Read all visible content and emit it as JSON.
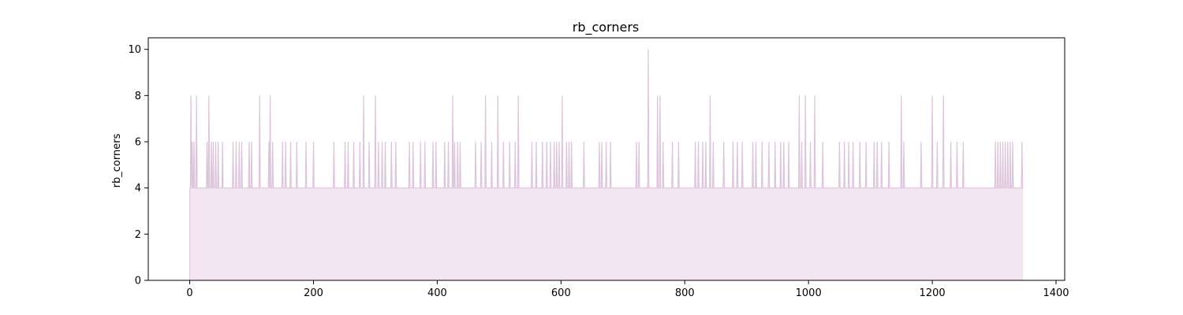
{
  "chart_data": {
    "type": "area",
    "title": "rb_corners",
    "xlabel": "",
    "ylabel": "rb_corners",
    "xlim": [
      -67,
      1414
    ],
    "ylim": [
      0,
      10.5
    ],
    "xticks": [
      0,
      200,
      400,
      600,
      800,
      1000,
      1200,
      1400
    ],
    "yticks": [
      0,
      2,
      4,
      6,
      8,
      10
    ],
    "grid": false,
    "fill_color": "#f3e6f0",
    "line_color": "#dcc4db",
    "x_start": 0,
    "x_end": 1347,
    "baseline_value": 4,
    "spikes": [
      {
        "x": 2,
        "y": 8
      },
      {
        "x": 4,
        "y": 6
      },
      {
        "x": 7,
        "y": 6
      },
      {
        "x": 11,
        "y": 8
      },
      {
        "x": 28,
        "y": 6
      },
      {
        "x": 31,
        "y": 8
      },
      {
        "x": 35,
        "y": 6
      },
      {
        "x": 38,
        "y": 6
      },
      {
        "x": 42,
        "y": 6
      },
      {
        "x": 46,
        "y": 6
      },
      {
        "x": 53,
        "y": 6
      },
      {
        "x": 70,
        "y": 6
      },
      {
        "x": 75,
        "y": 6
      },
      {
        "x": 80,
        "y": 6
      },
      {
        "x": 84,
        "y": 6
      },
      {
        "x": 96,
        "y": 6
      },
      {
        "x": 100,
        "y": 6
      },
      {
        "x": 113,
        "y": 8
      },
      {
        "x": 128,
        "y": 6
      },
      {
        "x": 130,
        "y": 8
      },
      {
        "x": 134,
        "y": 6
      },
      {
        "x": 150,
        "y": 6
      },
      {
        "x": 155,
        "y": 6
      },
      {
        "x": 163,
        "y": 6
      },
      {
        "x": 173,
        "y": 6
      },
      {
        "x": 188,
        "y": 6
      },
      {
        "x": 200,
        "y": 6
      },
      {
        "x": 233,
        "y": 6
      },
      {
        "x": 251,
        "y": 6
      },
      {
        "x": 256,
        "y": 6
      },
      {
        "x": 265,
        "y": 6
      },
      {
        "x": 275,
        "y": 6
      },
      {
        "x": 281,
        "y": 8
      },
      {
        "x": 290,
        "y": 6
      },
      {
        "x": 300,
        "y": 8
      },
      {
        "x": 305,
        "y": 6
      },
      {
        "x": 311,
        "y": 6
      },
      {
        "x": 316,
        "y": 6
      },
      {
        "x": 326,
        "y": 6
      },
      {
        "x": 333,
        "y": 6
      },
      {
        "x": 355,
        "y": 6
      },
      {
        "x": 361,
        "y": 6
      },
      {
        "x": 373,
        "y": 6
      },
      {
        "x": 380,
        "y": 6
      },
      {
        "x": 393,
        "y": 6
      },
      {
        "x": 398,
        "y": 6
      },
      {
        "x": 412,
        "y": 6
      },
      {
        "x": 418,
        "y": 6
      },
      {
        "x": 425,
        "y": 8
      },
      {
        "x": 428,
        "y": 6
      },
      {
        "x": 433,
        "y": 6
      },
      {
        "x": 437,
        "y": 6
      },
      {
        "x": 462,
        "y": 6
      },
      {
        "x": 471,
        "y": 6
      },
      {
        "x": 478,
        "y": 8
      },
      {
        "x": 488,
        "y": 6
      },
      {
        "x": 498,
        "y": 8
      },
      {
        "x": 507,
        "y": 6
      },
      {
        "x": 517,
        "y": 6
      },
      {
        "x": 526,
        "y": 6
      },
      {
        "x": 531,
        "y": 8
      },
      {
        "x": 553,
        "y": 6
      },
      {
        "x": 560,
        "y": 6
      },
      {
        "x": 570,
        "y": 6
      },
      {
        "x": 577,
        "y": 6
      },
      {
        "x": 583,
        "y": 6
      },
      {
        "x": 589,
        "y": 6
      },
      {
        "x": 593,
        "y": 6
      },
      {
        "x": 597,
        "y": 6
      },
      {
        "x": 602,
        "y": 8
      },
      {
        "x": 609,
        "y": 6
      },
      {
        "x": 613,
        "y": 6
      },
      {
        "x": 617,
        "y": 6
      },
      {
        "x": 637,
        "y": 6
      },
      {
        "x": 662,
        "y": 6
      },
      {
        "x": 666,
        "y": 6
      },
      {
        "x": 673,
        "y": 6
      },
      {
        "x": 680,
        "y": 6
      },
      {
        "x": 722,
        "y": 6
      },
      {
        "x": 726,
        "y": 6
      },
      {
        "x": 741,
        "y": 10
      },
      {
        "x": 756,
        "y": 8
      },
      {
        "x": 760,
        "y": 8
      },
      {
        "x": 765,
        "y": 6
      },
      {
        "x": 780,
        "y": 6
      },
      {
        "x": 790,
        "y": 6
      },
      {
        "x": 817,
        "y": 6
      },
      {
        "x": 822,
        "y": 6
      },
      {
        "x": 829,
        "y": 6
      },
      {
        "x": 834,
        "y": 6
      },
      {
        "x": 841,
        "y": 8
      },
      {
        "x": 846,
        "y": 6
      },
      {
        "x": 863,
        "y": 6
      },
      {
        "x": 878,
        "y": 6
      },
      {
        "x": 885,
        "y": 6
      },
      {
        "x": 893,
        "y": 6
      },
      {
        "x": 910,
        "y": 6
      },
      {
        "x": 915,
        "y": 6
      },
      {
        "x": 925,
        "y": 6
      },
      {
        "x": 936,
        "y": 6
      },
      {
        "x": 946,
        "y": 6
      },
      {
        "x": 955,
        "y": 6
      },
      {
        "x": 960,
        "y": 6
      },
      {
        "x": 968,
        "y": 6
      },
      {
        "x": 985,
        "y": 8
      },
      {
        "x": 989,
        "y": 6
      },
      {
        "x": 995,
        "y": 8
      },
      {
        "x": 1003,
        "y": 6
      },
      {
        "x": 1010,
        "y": 8
      },
      {
        "x": 1023,
        "y": 6
      },
      {
        "x": 1050,
        "y": 6
      },
      {
        "x": 1058,
        "y": 6
      },
      {
        "x": 1065,
        "y": 6
      },
      {
        "x": 1072,
        "y": 6
      },
      {
        "x": 1083,
        "y": 6
      },
      {
        "x": 1093,
        "y": 6
      },
      {
        "x": 1106,
        "y": 6
      },
      {
        "x": 1111,
        "y": 6
      },
      {
        "x": 1118,
        "y": 6
      },
      {
        "x": 1130,
        "y": 6
      },
      {
        "x": 1150,
        "y": 8
      },
      {
        "x": 1154,
        "y": 6
      },
      {
        "x": 1182,
        "y": 6
      },
      {
        "x": 1200,
        "y": 8
      },
      {
        "x": 1208,
        "y": 6
      },
      {
        "x": 1218,
        "y": 8
      },
      {
        "x": 1230,
        "y": 6
      },
      {
        "x": 1240,
        "y": 6
      },
      {
        "x": 1250,
        "y": 6
      },
      {
        "x": 1302,
        "y": 6
      },
      {
        "x": 1306,
        "y": 6
      },
      {
        "x": 1310,
        "y": 6
      },
      {
        "x": 1314,
        "y": 6
      },
      {
        "x": 1318,
        "y": 6
      },
      {
        "x": 1322,
        "y": 6
      },
      {
        "x": 1326,
        "y": 6
      },
      {
        "x": 1330,
        "y": 6
      },
      {
        "x": 1345,
        "y": 6
      }
    ]
  }
}
